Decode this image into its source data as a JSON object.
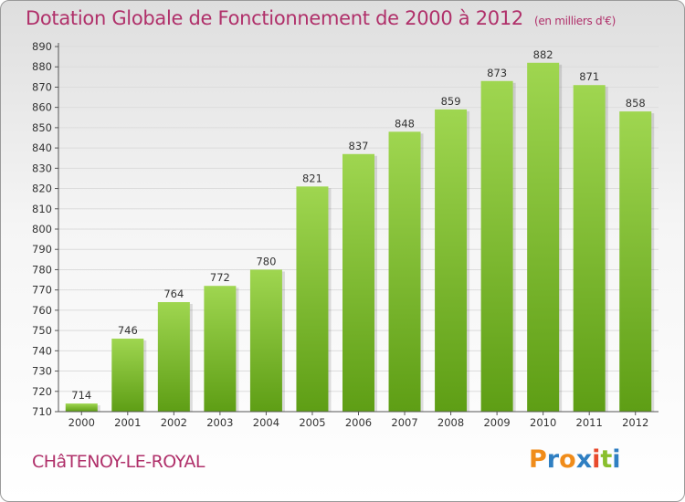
{
  "header": {
    "title": "Dotation Globale de Fonctionnement de 2000 à 2012",
    "subtitle": "(en milliers d'€)"
  },
  "footer": {
    "commune": "CHâTENOY-LE-ROYAL",
    "brand": "Proxiti"
  },
  "colors": {
    "title": "#b0306a",
    "bar_light": "#9fd650",
    "bar_dark": "#5e9e15",
    "grid": "#dcdcdc",
    "brand_letters": [
      "#f08c1a",
      "#2f7fc2",
      "#f08c1a",
      "#2f7fc2",
      "#e84a2d",
      "#89bf2e",
      "#2f7fc2"
    ]
  },
  "chart_data": {
    "type": "bar",
    "title": "Dotation Globale de Fonctionnement de 2000 à 2012",
    "subtitle": "(en milliers d'€)",
    "xlabel": "",
    "ylabel": "",
    "ylim": [
      710,
      890
    ],
    "ystep": 10,
    "grid": true,
    "categories": [
      "2000",
      "2001",
      "2002",
      "2003",
      "2004",
      "2005",
      "2006",
      "2007",
      "2008",
      "2009",
      "2010",
      "2011",
      "2012"
    ],
    "values": [
      714,
      746,
      764,
      772,
      780,
      821,
      837,
      848,
      859,
      873,
      882,
      871,
      858
    ]
  }
}
